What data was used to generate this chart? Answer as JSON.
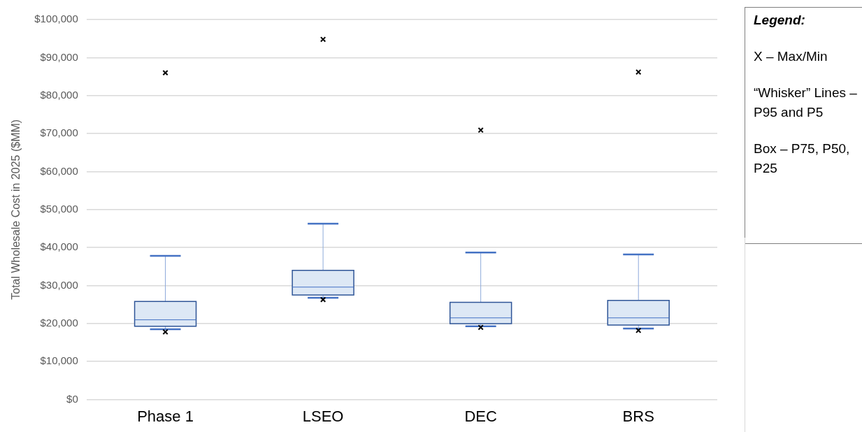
{
  "chart_data": {
    "type": "box",
    "categories": [
      "Phase 1",
      "LSEO",
      "DEC",
      "BRS"
    ],
    "ylabel": "Total Wholesale Cost in 2025 ($MM)",
    "ylim": [
      0,
      100000
    ],
    "yticks": [
      {
        "value": 0,
        "label": "$0"
      },
      {
        "value": 10000,
        "label": "$10,000"
      },
      {
        "value": 20000,
        "label": "$20,000"
      },
      {
        "value": 30000,
        "label": "$30,000"
      },
      {
        "value": 40000,
        "label": "$40,000"
      },
      {
        "value": 50000,
        "label": "$50,000"
      },
      {
        "value": 60000,
        "label": "$60,000"
      },
      {
        "value": 70000,
        "label": "$70,000"
      },
      {
        "value": 80000,
        "label": "$80,000"
      },
      {
        "value": 90000,
        "label": "$90,000"
      },
      {
        "value": 100000,
        "label": "$100,000"
      }
    ],
    "color": "#dde8f5",
    "boxes": [
      {
        "low": 18500,
        "q1": 19300,
        "median": 21000,
        "q3": 25800,
        "high": 37800,
        "outliers": [
          86000,
          17800
        ]
      },
      {
        "low": 26800,
        "q1": 27500,
        "median": 29600,
        "q3": 34000,
        "high": 46300,
        "outliers": [
          94800,
          26300
        ]
      },
      {
        "low": 19300,
        "q1": 20000,
        "median": 21500,
        "q3": 25600,
        "high": 38700,
        "outliers": [
          70900,
          19000
        ]
      },
      {
        "low": 18700,
        "q1": 19600,
        "median": 21500,
        "q3": 26100,
        "high": 38200,
        "outliers": [
          86200,
          18200
        ]
      }
    ],
    "marker": "cross",
    "grid": "y",
    "legend": false,
    "legend_title": "Legend:",
    "annotations": [
      "X – Max/Min",
      "“Whisker” Lines – P95 and P5",
      "Box – P75, P50, P25"
    ]
  }
}
